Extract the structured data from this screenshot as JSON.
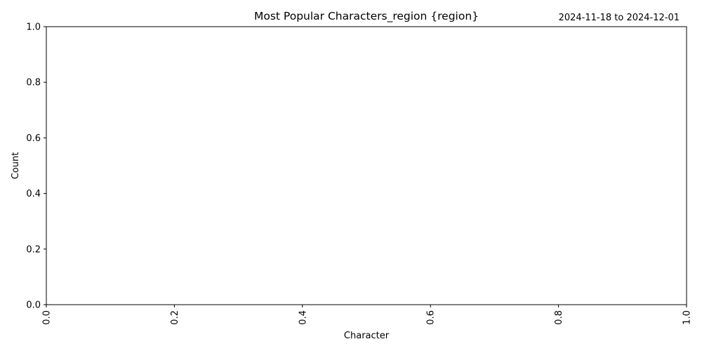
{
  "chart_data": {
    "type": "bar",
    "title": "Most Popular Characters_region {region}",
    "subtitle": "2024-11-18 to 2024-12-01",
    "xlabel": "Character",
    "ylabel": "Count",
    "categories": [],
    "values": [],
    "xlim": [
      0.0,
      1.0
    ],
    "ylim": [
      0.0,
      1.0
    ],
    "x_ticks": [
      "0.0",
      "0.2",
      "0.4",
      "0.6",
      "0.8",
      "1.0"
    ],
    "y_ticks": [
      "0.0",
      "0.2",
      "0.4",
      "0.6",
      "0.8",
      "1.0"
    ],
    "x_tick_rotation": "vertical",
    "grid": false,
    "legend": "none"
  }
}
